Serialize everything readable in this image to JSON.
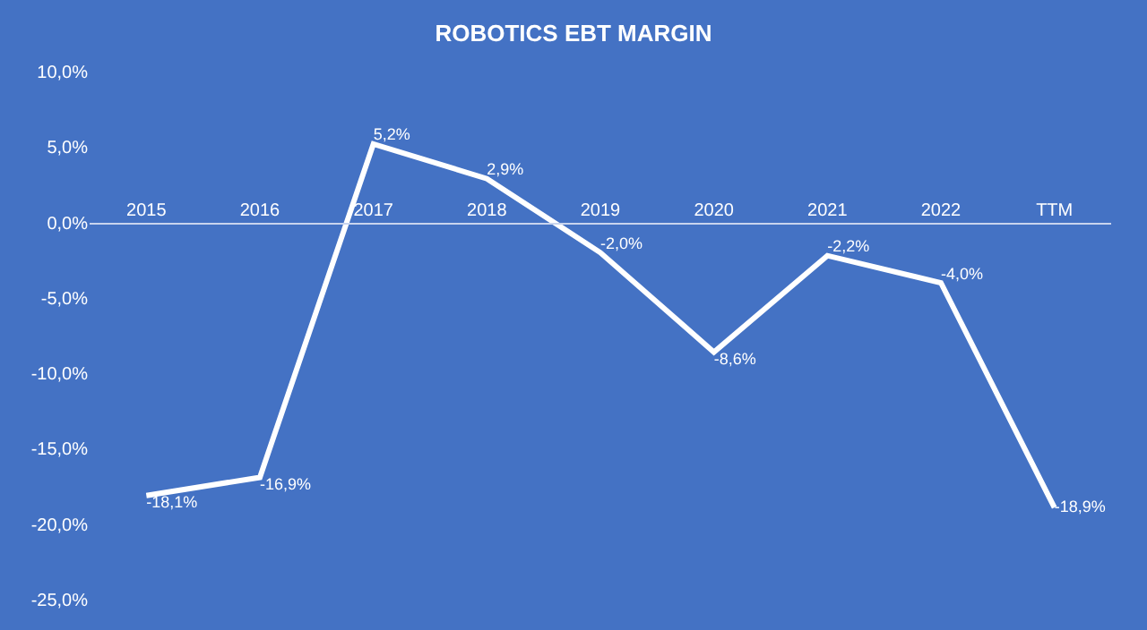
{
  "chart_data": {
    "type": "line",
    "title": "ROBOTICS EBT MARGIN",
    "categories": [
      "2015",
      "2016",
      "2017",
      "2018",
      "2019",
      "2020",
      "2021",
      "2022",
      "TTM"
    ],
    "series": [
      {
        "color": "#ffffff",
        "values": [
          -18.1,
          -16.9,
          5.2,
          2.9,
          -2.0,
          -8.6,
          -2.2,
          -4.0,
          -18.9
        ],
        "value_labels": [
          "-18,1%",
          "-16,9%",
          "5,2%",
          "2,9%",
          "-2,0%",
          "-8,6%",
          "-2,2%",
          "-4,0%",
          "-18,9%"
        ]
      }
    ],
    "ylim": [
      -25,
      10
    ],
    "yticks": [
      {
        "value": -25,
        "label": "-25,0%"
      },
      {
        "value": -20,
        "label": "-20,0%"
      },
      {
        "value": -15,
        "label": "-15,0%"
      },
      {
        "value": -10,
        "label": "-10,0%"
      },
      {
        "value": -5,
        "label": "-5,0%"
      },
      {
        "value": 0,
        "label": "0,0%"
      },
      {
        "value": 5,
        "label": "5,0%"
      },
      {
        "value": 10,
        "label": "10,0%"
      }
    ],
    "grid": false,
    "legend": false,
    "marker": "none",
    "line_style": "solid"
  }
}
